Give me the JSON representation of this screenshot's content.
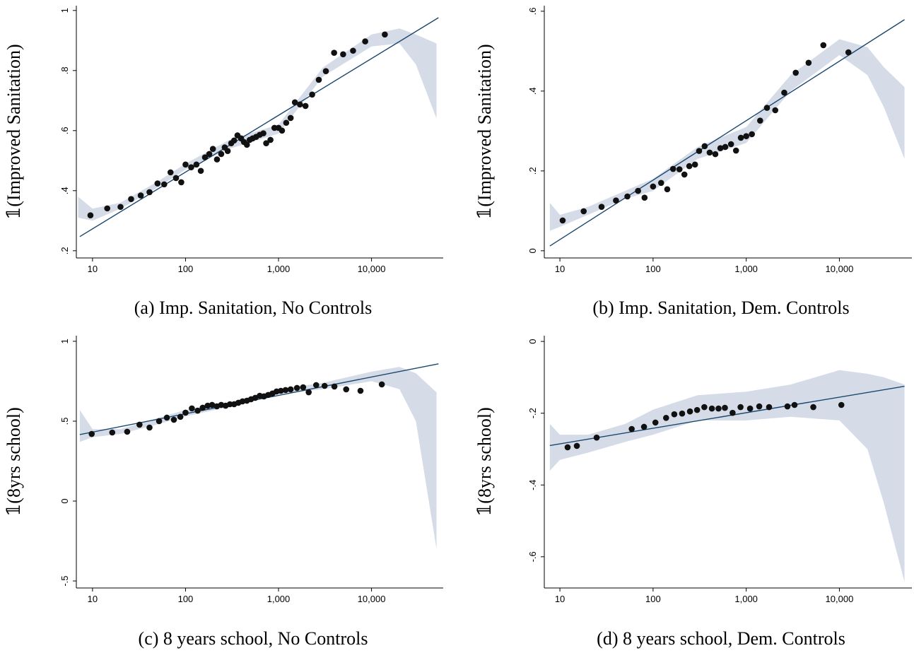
{
  "chart_data": [
    {
      "type": "scatter",
      "caption": "(a) Imp. Sanitation, No Controls",
      "y_label": "𝟙(Improved Sanitation)",
      "log_x": true,
      "xlim": [
        6.7,
        59000
      ],
      "ylim": [
        0.176,
        1.016
      ],
      "xticks": [
        10,
        100,
        {
          "value": 1000,
          "label": "1,000"
        },
        {
          "value": 10000,
          "label": "10,000"
        }
      ],
      "yticks": [
        {
          "value": 0.2,
          "label": ".2"
        },
        {
          "value": 0.4,
          "label": ".4"
        },
        {
          "value": 0.6,
          "label": ".6"
        },
        {
          "value": 0.8,
          "label": ".8"
        },
        1
      ],
      "point_color": "#111111",
      "fit_color": "#1a476f",
      "band_color": "#d5dce8",
      "x": [
        9.5,
        14.4,
        20,
        26,
        33,
        41,
        50,
        59,
        69,
        79,
        90,
        100,
        115,
        131,
        146,
        162,
        180,
        197,
        218,
        242,
        264,
        284,
        310,
        333,
        362,
        396,
        425,
        457,
        490,
        527,
        574,
        628,
        687,
        737,
        819,
        904,
        1000,
        1090,
        1210,
        1350,
        1500,
        1700,
        1950,
        2300,
        2710,
        3230,
        3960,
        4950,
        6330,
        8550,
        13900
      ],
      "y": [
        0.318,
        0.341,
        0.346,
        0.372,
        0.384,
        0.395,
        0.424,
        0.421,
        0.461,
        0.442,
        0.428,
        0.487,
        0.478,
        0.487,
        0.466,
        0.511,
        0.522,
        0.539,
        0.504,
        0.522,
        0.544,
        0.532,
        0.558,
        0.567,
        0.584,
        0.574,
        0.562,
        0.553,
        0.569,
        0.574,
        0.579,
        0.586,
        0.591,
        0.558,
        0.569,
        0.609,
        0.609,
        0.6,
        0.626,
        0.642,
        0.694,
        0.687,
        0.682,
        0.72,
        0.769,
        0.798,
        0.859,
        0.854,
        0.866,
        0.897,
        0.92
      ],
      "fit_x": [
        7.3,
        52500
      ],
      "fit_y": [
        0.247,
        0.976
      ],
      "band_x": [
        7,
        10,
        20,
        50,
        100,
        300,
        1000,
        3000,
        10000,
        20000,
        30000,
        50000
      ],
      "band_lower": [
        0.31,
        0.3,
        0.34,
        0.41,
        0.47,
        0.54,
        0.59,
        0.78,
        0.88,
        0.89,
        0.82,
        0.64
      ],
      "band_upper": [
        0.38,
        0.34,
        0.36,
        0.43,
        0.49,
        0.57,
        0.62,
        0.81,
        0.92,
        0.94,
        0.92,
        0.89
      ]
    },
    {
      "type": "scatter",
      "caption": "(b) Imp. Sanitation, Dem. Controls",
      "y_label": "𝟙(Improved Sanitation)",
      "log_x": true,
      "xlim": [
        6.8,
        60000
      ],
      "ylim": [
        -0.018,
        0.614
      ],
      "xticks": [
        10,
        100,
        {
          "value": 1000,
          "label": "1,000"
        },
        {
          "value": 10000,
          "label": "10,000"
        }
      ],
      "yticks": [
        0,
        {
          "value": 0.2,
          "label": ".2"
        },
        {
          "value": 0.4,
          "label": ".4"
        },
        {
          "value": 0.6,
          "label": ".6"
        }
      ],
      "point_color": "#111111",
      "fit_color": "#1a476f",
      "band_color": "#d5dce8",
      "x": [
        10.7,
        18,
        28,
        40,
        53,
        69,
        81,
        100,
        122,
        142,
        164,
        192,
        217,
        245,
        282,
        312,
        358,
        405,
        466,
        528,
        596,
        687,
        777,
        876,
        1000,
        1150,
        1410,
        1670,
        2050,
        2560,
        3400,
        4670,
        6730,
        12500
      ],
      "y": [
        0.076,
        0.099,
        0.11,
        0.126,
        0.136,
        0.15,
        0.133,
        0.161,
        0.17,
        0.154,
        0.205,
        0.204,
        0.191,
        0.212,
        0.216,
        0.25,
        0.262,
        0.246,
        0.242,
        0.257,
        0.26,
        0.267,
        0.251,
        0.283,
        0.287,
        0.292,
        0.326,
        0.358,
        0.352,
        0.396,
        0.446,
        0.471,
        0.515,
        0.497
      ],
      "fit_x": [
        7.8,
        50000
      ],
      "fit_y": [
        0.012,
        0.579
      ],
      "band_x": [
        7.8,
        10,
        20,
        50,
        100,
        300,
        1000,
        3000,
        10000,
        20000,
        30000,
        50000
      ],
      "band_lower": [
        0.05,
        0.06,
        0.09,
        0.13,
        0.15,
        0.23,
        0.27,
        0.4,
        0.49,
        0.44,
        0.36,
        0.23
      ],
      "band_upper": [
        0.12,
        0.09,
        0.11,
        0.15,
        0.18,
        0.26,
        0.31,
        0.44,
        0.53,
        0.51,
        0.46,
        0.41
      ]
    },
    {
      "type": "scatter",
      "caption": "(c) 8 years school, No Controls",
      "y_label": "𝟙(8yrs school)",
      "log_x": true,
      "xlim": [
        6.7,
        59000
      ],
      "ylim": [
        -0.544,
        1.035
      ],
      "xticks": [
        10,
        100,
        {
          "value": 1000,
          "label": "1,000"
        },
        {
          "value": 10000,
          "label": "10,000"
        }
      ],
      "yticks": [
        {
          "value": -0.5,
          "label": "-.5"
        },
        0,
        {
          "value": 0.5,
          "label": ".5"
        },
        1
      ],
      "point_color": "#111111",
      "fit_color": "#1a476f",
      "band_color": "#d5dce8",
      "x": [
        9.8,
        16.3,
        23.6,
        32,
        41,
        52,
        63,
        75,
        88,
        100,
        117,
        135,
        153,
        173,
        193,
        217,
        242,
        270,
        300,
        333,
        370,
        410,
        457,
        506,
        562,
        628,
        697,
        774,
        860,
        953,
        1060,
        1190,
        1350,
        1580,
        1840,
        2110,
        2540,
        3130,
        3990,
        5340,
        7610,
        12900
      ],
      "y": [
        0.42,
        0.429,
        0.434,
        0.478,
        0.46,
        0.5,
        0.522,
        0.509,
        0.527,
        0.553,
        0.58,
        0.566,
        0.584,
        0.597,
        0.602,
        0.593,
        0.602,
        0.597,
        0.606,
        0.606,
        0.615,
        0.624,
        0.628,
        0.637,
        0.646,
        0.659,
        0.655,
        0.664,
        0.673,
        0.686,
        0.69,
        0.695,
        0.699,
        0.708,
        0.712,
        0.681,
        0.726,
        0.721,
        0.717,
        0.699,
        0.69,
        0.73
      ],
      "fit_x": [
        7.3,
        52500
      ],
      "fit_y": [
        0.416,
        0.859
      ],
      "band_x": [
        7.3,
        10,
        20,
        50,
        100,
        300,
        1000,
        3000,
        10000,
        20000,
        30000,
        50000
      ],
      "band_lower": [
        0.37,
        0.4,
        0.42,
        0.48,
        0.53,
        0.59,
        0.67,
        0.7,
        0.75,
        0.7,
        0.5,
        -0.3
      ],
      "band_upper": [
        0.57,
        0.45,
        0.45,
        0.52,
        0.57,
        0.62,
        0.7,
        0.74,
        0.81,
        0.84,
        0.8,
        0.68
      ]
    },
    {
      "type": "scatter",
      "caption": "(d) 8 years school, Dem. Controls",
      "y_label": "𝟙(8yrs school)",
      "log_x": true,
      "xlim": [
        6.8,
        60000
      ],
      "ylim": [
        -0.687,
        0.016
      ],
      "xticks": [
        10,
        100,
        {
          "value": 1000,
          "label": "1,000"
        },
        {
          "value": 10000,
          "label": "10,000"
        }
      ],
      "yticks": [
        {
          "value": -0.6,
          "label": "-.6"
        },
        {
          "value": -0.4,
          "label": "-.4"
        },
        {
          "value": -0.2,
          "label": "-.2"
        },
        0
      ],
      "point_color": "#111111",
      "fit_color": "#1a476f",
      "band_color": "#d5dce8",
      "x": [
        12.1,
        15.2,
        24.8,
        59,
        80,
        106,
        138,
        169,
        205,
        249,
        297,
        355,
        428,
        504,
        590,
        714,
        869,
        1100,
        1380,
        1760,
        2770,
        3300,
        5250,
        10500
      ],
      "y": [
        -0.295,
        -0.291,
        -0.268,
        -0.244,
        -0.238,
        -0.226,
        -0.213,
        -0.203,
        -0.201,
        -0.195,
        -0.191,
        -0.183,
        -0.187,
        -0.187,
        -0.185,
        -0.199,
        -0.183,
        -0.187,
        -0.181,
        -0.183,
        -0.181,
        -0.177,
        -0.183,
        -0.177
      ],
      "fit_x": [
        7.8,
        50000
      ],
      "fit_y": [
        -0.29,
        -0.125
      ],
      "band_x": [
        7.8,
        10,
        20,
        50,
        100,
        300,
        1000,
        3000,
        10000,
        20000,
        30000,
        50000
      ],
      "band_lower": [
        -0.36,
        -0.33,
        -0.31,
        -0.28,
        -0.26,
        -0.22,
        -0.22,
        -0.21,
        -0.22,
        -0.3,
        -0.45,
        -0.67
      ],
      "band_upper": [
        -0.23,
        -0.26,
        -0.26,
        -0.23,
        -0.19,
        -0.15,
        -0.14,
        -0.12,
        -0.08,
        -0.09,
        -0.1,
        -0.12
      ]
    }
  ]
}
